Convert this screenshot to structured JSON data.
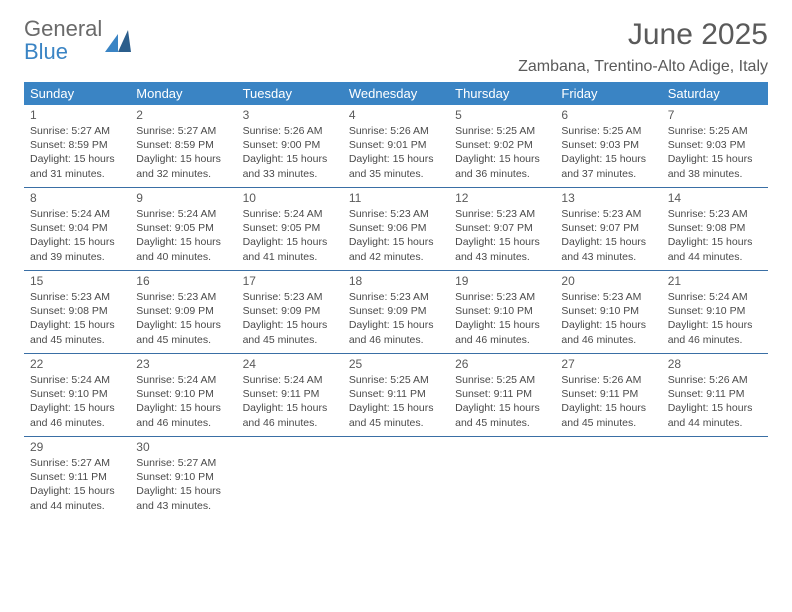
{
  "logo": {
    "text1": "General",
    "text2": "Blue"
  },
  "title": "June 2025",
  "location": "Zambana, Trentino-Alto Adige, Italy",
  "colors": {
    "header_bg": "#3a84c4",
    "header_text": "#ffffff",
    "row_border": "#3a6fa5",
    "body_text": "#4a4a4a",
    "title_text": "#5a5a5a",
    "logo_gray": "#6a6a6a",
    "logo_blue": "#3a84c4",
    "background": "#ffffff"
  },
  "dayNames": [
    "Sunday",
    "Monday",
    "Tuesday",
    "Wednesday",
    "Thursday",
    "Friday",
    "Saturday"
  ],
  "weeks": [
    [
      {
        "n": "1",
        "sunrise": "5:27 AM",
        "sunset": "8:59 PM",
        "dl": "15 hours and 31 minutes."
      },
      {
        "n": "2",
        "sunrise": "5:27 AM",
        "sunset": "8:59 PM",
        "dl": "15 hours and 32 minutes."
      },
      {
        "n": "3",
        "sunrise": "5:26 AM",
        "sunset": "9:00 PM",
        "dl": "15 hours and 33 minutes."
      },
      {
        "n": "4",
        "sunrise": "5:26 AM",
        "sunset": "9:01 PM",
        "dl": "15 hours and 35 minutes."
      },
      {
        "n": "5",
        "sunrise": "5:25 AM",
        "sunset": "9:02 PM",
        "dl": "15 hours and 36 minutes."
      },
      {
        "n": "6",
        "sunrise": "5:25 AM",
        "sunset": "9:03 PM",
        "dl": "15 hours and 37 minutes."
      },
      {
        "n": "7",
        "sunrise": "5:25 AM",
        "sunset": "9:03 PM",
        "dl": "15 hours and 38 minutes."
      }
    ],
    [
      {
        "n": "8",
        "sunrise": "5:24 AM",
        "sunset": "9:04 PM",
        "dl": "15 hours and 39 minutes."
      },
      {
        "n": "9",
        "sunrise": "5:24 AM",
        "sunset": "9:05 PM",
        "dl": "15 hours and 40 minutes."
      },
      {
        "n": "10",
        "sunrise": "5:24 AM",
        "sunset": "9:05 PM",
        "dl": "15 hours and 41 minutes."
      },
      {
        "n": "11",
        "sunrise": "5:23 AM",
        "sunset": "9:06 PM",
        "dl": "15 hours and 42 minutes."
      },
      {
        "n": "12",
        "sunrise": "5:23 AM",
        "sunset": "9:07 PM",
        "dl": "15 hours and 43 minutes."
      },
      {
        "n": "13",
        "sunrise": "5:23 AM",
        "sunset": "9:07 PM",
        "dl": "15 hours and 43 minutes."
      },
      {
        "n": "14",
        "sunrise": "5:23 AM",
        "sunset": "9:08 PM",
        "dl": "15 hours and 44 minutes."
      }
    ],
    [
      {
        "n": "15",
        "sunrise": "5:23 AM",
        "sunset": "9:08 PM",
        "dl": "15 hours and 45 minutes."
      },
      {
        "n": "16",
        "sunrise": "5:23 AM",
        "sunset": "9:09 PM",
        "dl": "15 hours and 45 minutes."
      },
      {
        "n": "17",
        "sunrise": "5:23 AM",
        "sunset": "9:09 PM",
        "dl": "15 hours and 45 minutes."
      },
      {
        "n": "18",
        "sunrise": "5:23 AM",
        "sunset": "9:09 PM",
        "dl": "15 hours and 46 minutes."
      },
      {
        "n": "19",
        "sunrise": "5:23 AM",
        "sunset": "9:10 PM",
        "dl": "15 hours and 46 minutes."
      },
      {
        "n": "20",
        "sunrise": "5:23 AM",
        "sunset": "9:10 PM",
        "dl": "15 hours and 46 minutes."
      },
      {
        "n": "21",
        "sunrise": "5:24 AM",
        "sunset": "9:10 PM",
        "dl": "15 hours and 46 minutes."
      }
    ],
    [
      {
        "n": "22",
        "sunrise": "5:24 AM",
        "sunset": "9:10 PM",
        "dl": "15 hours and 46 minutes."
      },
      {
        "n": "23",
        "sunrise": "5:24 AM",
        "sunset": "9:10 PM",
        "dl": "15 hours and 46 minutes."
      },
      {
        "n": "24",
        "sunrise": "5:24 AM",
        "sunset": "9:11 PM",
        "dl": "15 hours and 46 minutes."
      },
      {
        "n": "25",
        "sunrise": "5:25 AM",
        "sunset": "9:11 PM",
        "dl": "15 hours and 45 minutes."
      },
      {
        "n": "26",
        "sunrise": "5:25 AM",
        "sunset": "9:11 PM",
        "dl": "15 hours and 45 minutes."
      },
      {
        "n": "27",
        "sunrise": "5:26 AM",
        "sunset": "9:11 PM",
        "dl": "15 hours and 45 minutes."
      },
      {
        "n": "28",
        "sunrise": "5:26 AM",
        "sunset": "9:11 PM",
        "dl": "15 hours and 44 minutes."
      }
    ],
    [
      {
        "n": "29",
        "sunrise": "5:27 AM",
        "sunset": "9:11 PM",
        "dl": "15 hours and 44 minutes."
      },
      {
        "n": "30",
        "sunrise": "5:27 AM",
        "sunset": "9:10 PM",
        "dl": "15 hours and 43 minutes."
      },
      null,
      null,
      null,
      null,
      null
    ]
  ],
  "labels": {
    "sunrise": "Sunrise:",
    "sunset": "Sunset:",
    "daylight": "Daylight:"
  }
}
